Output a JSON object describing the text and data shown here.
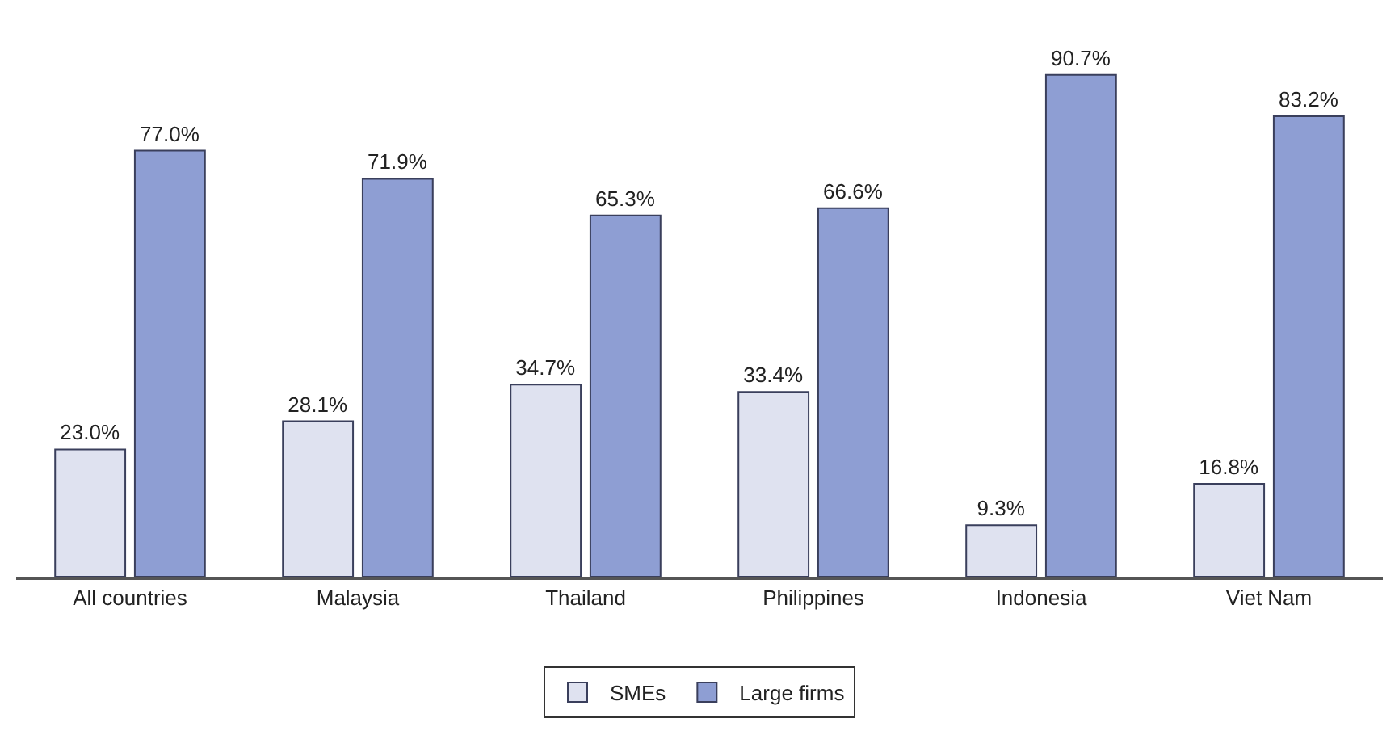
{
  "chart_data": {
    "type": "bar",
    "categories": [
      "All countries",
      "Malaysia",
      "Thailand",
      "Philippines",
      "Indonesia",
      "Viet Nam"
    ],
    "series": [
      {
        "name": "SMEs",
        "color": "#dfe2f0",
        "values": [
          23.0,
          28.1,
          34.7,
          33.4,
          9.3,
          16.8
        ],
        "value_labels": [
          "23.0%",
          "28.1%",
          "34.7%",
          "33.4%",
          "9.3%",
          "16.8%"
        ]
      },
      {
        "name": "Large firms",
        "color": "#8e9ed3",
        "values": [
          77.0,
          71.9,
          65.3,
          66.6,
          90.7,
          83.2
        ],
        "value_labels": [
          "77.0%",
          "71.9%",
          "65.3%",
          "66.6%",
          "90.7%",
          "83.2%"
        ]
      }
    ],
    "legend": "bottom",
    "tick_labels": "x"
  }
}
